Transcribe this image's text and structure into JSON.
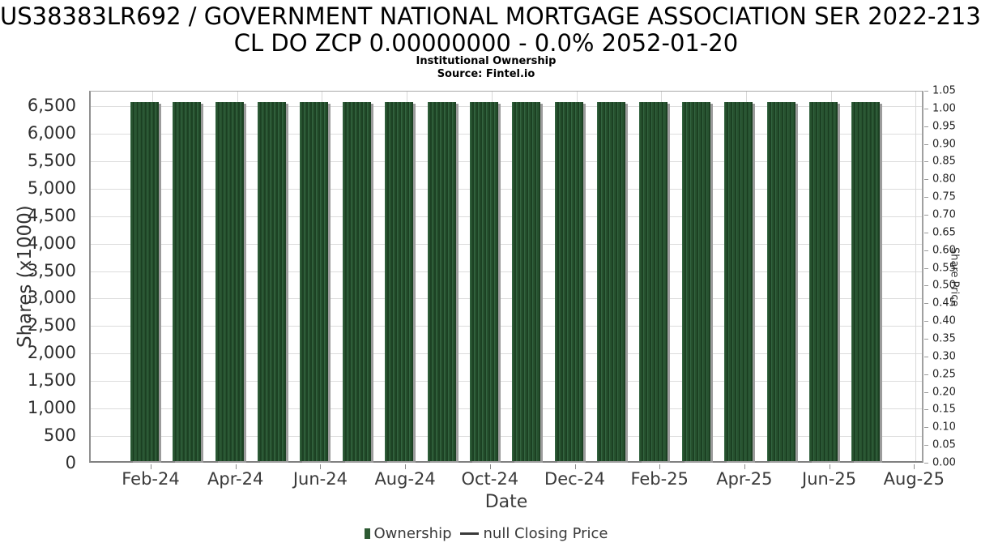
{
  "header": {
    "title_line1": "US38383LR692 / GOVERNMENT NATIONAL MORTGAGE ASSOCIATION SER 2022-213",
    "title_line2": "CL DO ZCP 0.00000000 - 0.0% 2052-01-20",
    "subtitle": "Institutional Ownership",
    "source": "Source: Fintel.io"
  },
  "chart_data": {
    "type": "bar",
    "title": "US38383LR692 / GOVERNMENT NATIONAL MORTGAGE ASSOCIATION SER 2022-213 CL DO ZCP 0.00000000 - 0.0% 2052-01-20",
    "subtitle": "Institutional Ownership",
    "source": "Source: Fintel.io",
    "xlabel": "Date",
    "ylabel_left": "Shares (x1000)",
    "ylabel_right": "Share Price",
    "grid": true,
    "legend_position": "bottom",
    "categories": [
      "Feb-24",
      "Mar-24",
      "Apr-24",
      "May-24",
      "Jun-24",
      "Jul-24",
      "Aug-24",
      "Sep-24",
      "Oct-24",
      "Nov-24",
      "Dec-24",
      "Jan-25",
      "Feb-25",
      "Mar-25",
      "Apr-25",
      "May-25",
      "Jun-25",
      "Jul-25"
    ],
    "series": [
      {
        "name": "Ownership",
        "type": "bar",
        "axis": "left",
        "color": "#27522f",
        "values": [
          6530,
          6530,
          6530,
          6530,
          6530,
          6530,
          6530,
          6530,
          6530,
          6530,
          6530,
          6530,
          6530,
          6530,
          6530,
          6530,
          6530,
          6530
        ]
      },
      {
        "name": "null Closing Price",
        "type": "line",
        "axis": "right",
        "values": []
      }
    ],
    "x_tick_labels": [
      "Feb-24",
      "Apr-24",
      "Jun-24",
      "Aug-24",
      "Oct-24",
      "Dec-24",
      "Feb-25",
      "Apr-25",
      "Jun-25",
      "Aug-25"
    ],
    "left_axis": {
      "tick_labels": [
        "0",
        "500",
        "1,000",
        "1,500",
        "2,000",
        "2,500",
        "3,000",
        "3,500",
        "4,000",
        "4,500",
        "5,000",
        "5,500",
        "6,000",
        "6,500"
      ],
      "tick_step": 500,
      "range": [
        0,
        6765
      ]
    },
    "right_axis": {
      "tick_labels": [
        "0.00",
        "0.05",
        "0.10",
        "0.15",
        "0.20",
        "0.25",
        "0.30",
        "0.35",
        "0.40",
        "0.45",
        "0.50",
        "0.55",
        "0.60",
        "0.65",
        "0.70",
        "0.75",
        "0.80",
        "0.85",
        "0.90",
        "0.95",
        "1.00",
        "1.05"
      ],
      "tick_step": 0.05,
      "range": [
        0,
        1.05
      ]
    },
    "legend": [
      {
        "label": "Ownership",
        "marker": "bar",
        "color": "#2d5a33"
      },
      {
        "label": "null Closing Price",
        "marker": "dash",
        "color": "#3a3a3a"
      }
    ]
  }
}
